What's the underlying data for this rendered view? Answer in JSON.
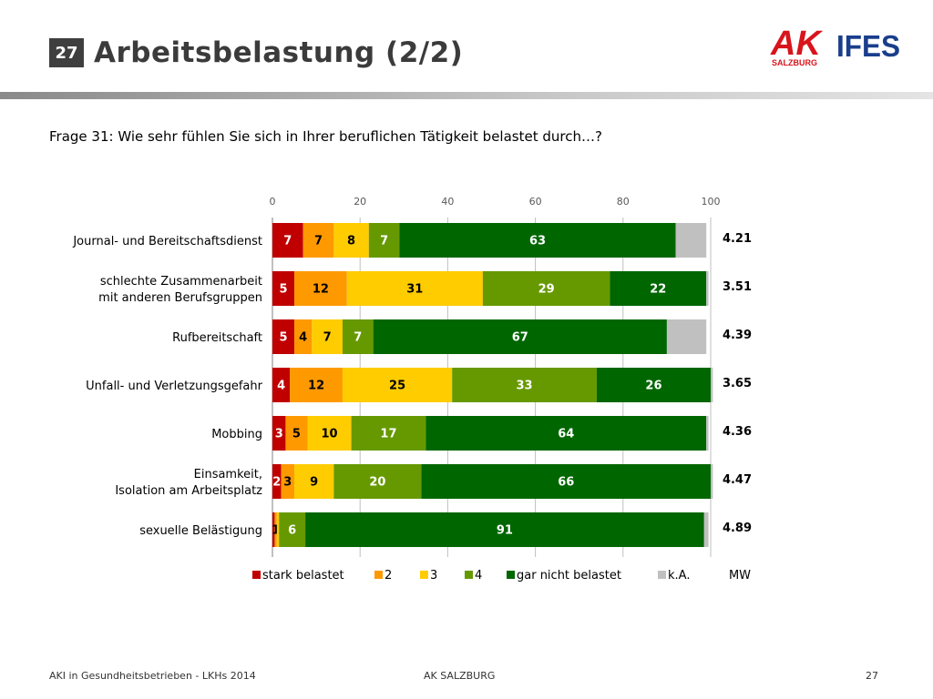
{
  "slide": {
    "number": "27",
    "title": "Arbeitsbelastung (2/2)",
    "question": "Frage 31: Wie sehr fühlen Sie sich in Ihrer beruflichen Tätigkeit belastet durch…?"
  },
  "logos": {
    "ak_text": "AK",
    "ak_subtext": "SALZBURG",
    "ifes_text": "IFES",
    "ak_color": "#d8141c",
    "ifes_color": "#1a3e8c"
  },
  "footer": {
    "left": "AKI in Gesundheitsbetrieben - LKHs 2014",
    "center": "AK SALZBURG",
    "right": "27"
  },
  "chart_data": {
    "type": "bar",
    "orientation": "horizontal",
    "stacked": true,
    "xlim": [
      0,
      100
    ],
    "xticks": [
      "0",
      "20",
      "40",
      "60",
      "80",
      "100"
    ],
    "categories": [
      "Journal- und Bereitschaftsdienst",
      "schlechte Zusammenarbeit\nmit anderen Berufsgruppen",
      "Rufbereitschaft",
      "Unfall- und Verletzungsgefahr",
      "Mobbing",
      "Einsamkeit,\nIsolation am Arbeitsplatz",
      "sexuelle Belästigung"
    ],
    "series": [
      {
        "name": "stark belastet",
        "color": "#c00000",
        "label_color": "#ffffff",
        "values": [
          7,
          5,
          5,
          4,
          3,
          2,
          0.5
        ],
        "labels": [
          "7",
          "5",
          "5",
          "4",
          "3",
          "2",
          ""
        ]
      },
      {
        "name": "2",
        "color": "#ff9900",
        "label_color": "#000000",
        "values": [
          7,
          12,
          4,
          12,
          5,
          3,
          0.5
        ],
        "labels": [
          "7",
          "12",
          "4",
          "12",
          "5",
          "3",
          "1"
        ]
      },
      {
        "name": "3",
        "color": "#ffcc00",
        "label_color": "#000000",
        "values": [
          8,
          31,
          7,
          25,
          10,
          9,
          0.5
        ],
        "labels": [
          "8",
          "31",
          "7",
          "25",
          "10",
          "9",
          ""
        ]
      },
      {
        "name": "4",
        "color": "#669900",
        "label_color": "#ffffff",
        "values": [
          7,
          29,
          7,
          33,
          17,
          20,
          6
        ],
        "labels": [
          "7",
          "29",
          "7",
          "33",
          "17",
          "20",
          "6"
        ]
      },
      {
        "name": "gar nicht belastet",
        "color": "#006600",
        "label_color": "#ffffff",
        "values": [
          63,
          22,
          67,
          26,
          64,
          66,
          91
        ],
        "labels": [
          "63",
          "22",
          "67",
          "26",
          "64",
          "66",
          "91"
        ]
      },
      {
        "name": "k.A.",
        "color": "#c0c0c0",
        "label_color": "#000000",
        "values": [
          7,
          0.5,
          9,
          0.5,
          0.5,
          0.5,
          1
        ],
        "labels": [
          "",
          "",
          "",
          "",
          "",
          "",
          ""
        ]
      }
    ],
    "mw": [
      "4.21",
      "3.51",
      "4.39",
      "3.65",
      "4.36",
      "4.47",
      "4.89"
    ],
    "mw_label": "MW",
    "grid": true,
    "legend_position": "bottom"
  }
}
